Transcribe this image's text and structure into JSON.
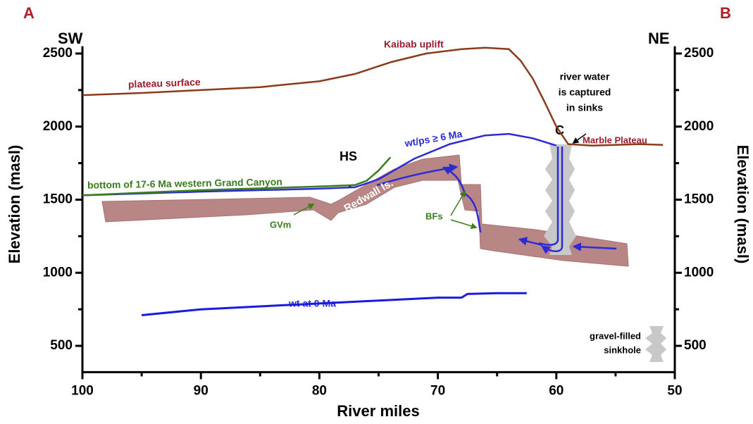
{
  "chart_data": {
    "type": "line",
    "panel_labels": [
      "A",
      "B"
    ],
    "direction_labels": [
      "SW",
      "NE"
    ],
    "xlabel": "River miles",
    "ylabel": "Elevation (masl)",
    "y2label": "Elevation (masl)",
    "xlim": [
      100,
      50
    ],
    "xticks": [
      100,
      90,
      80,
      70,
      60,
      50
    ],
    "ylim": [
      320,
      2550
    ],
    "yticks": [
      500,
      1000,
      1500,
      2000,
      2500
    ],
    "y2lim": [
      320,
      2550
    ],
    "y2ticks": [
      500,
      1000,
      1500,
      2000,
      2500
    ],
    "series": [
      {
        "name": "plateau surface",
        "color": "#8b3a1a",
        "x": [
          100,
          95,
          90,
          85,
          80,
          77,
          74,
          71,
          68,
          66,
          64,
          63,
          62,
          61,
          60,
          59,
          57,
          55,
          53,
          51
        ],
        "values": [
          2215,
          2230,
          2250,
          2270,
          2310,
          2360,
          2440,
          2500,
          2530,
          2540,
          2530,
          2450,
          2330,
          2170,
          2000,
          1880,
          1870,
          1875,
          1880,
          1875
        ]
      },
      {
        "name": "wt/ps ≥ 6 Ma",
        "color": "#2b2bd6",
        "x": [
          100,
          90,
          80,
          77,
          75,
          72,
          69,
          66,
          64,
          62,
          60
        ],
        "values": [
          1530,
          1555,
          1575,
          1585,
          1640,
          1780,
          1880,
          1940,
          1950,
          1920,
          1870
        ]
      },
      {
        "name": "bottom of 17-6 Ma western Grand Canyon",
        "color": "#3a7d1e",
        "x": [
          100,
          90,
          80,
          77,
          76,
          75,
          74
        ],
        "values": [
          1530,
          1565,
          1590,
          1600,
          1630,
          1700,
          1790
        ]
      },
      {
        "name": "wt at 0 Ma",
        "color": "#1a1ae0",
        "x": [
          95,
          90,
          85,
          80,
          75,
          70,
          68,
          67.5,
          65,
          62.5
        ],
        "values": [
          710,
          750,
          770,
          790,
          810,
          830,
          830,
          855,
          860,
          860
        ]
      }
    ],
    "annotations": {
      "uplift": "Kaibab uplift",
      "hs": "HS",
      "c": "C",
      "marble": "Marble Plateau",
      "captured": [
        "river water",
        "is captured",
        "in sinks"
      ],
      "redwall": "Redwall ls.",
      "gvm": "GVm",
      "bfs": "BFs",
      "sinkhole": [
        "gravel-filled",
        "sinkhole"
      ]
    }
  }
}
